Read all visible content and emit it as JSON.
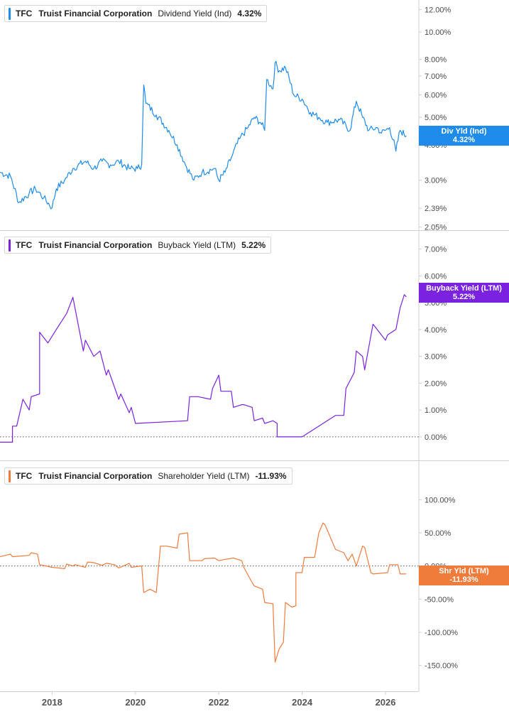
{
  "chart_data": [
    {
      "type": "line",
      "scale": "log",
      "ticker": "TFC",
      "company": "Truist Financial Corporation",
      "metric": "Dividend Yield (Ind)",
      "current_value": "4.32%",
      "tag_label": "Div Yld (Ind)",
      "color": "#1f8ceb",
      "ylim": [
        2.0,
        12.6
      ],
      "y_ticks": [
        {
          "v": 12,
          "label": "12.00%"
        },
        {
          "v": 10,
          "label": "10.00%"
        },
        {
          "v": 8,
          "label": "8.00%"
        },
        {
          "v": 7,
          "label": "7.00%"
        },
        {
          "v": 6,
          "label": "6.00%"
        },
        {
          "v": 5,
          "label": "5.00%"
        },
        {
          "v": 4,
          "label": "4.00%"
        },
        {
          "v": 3,
          "label": "3.00%"
        },
        {
          "v": 2.39,
          "label": "2.39%"
        },
        {
          "v": 2.05,
          "label": "2.05%"
        }
      ],
      "series": [
        {
          "x": [
            2016.75,
            2017.0,
            2017.2,
            2017.45,
            2017.6,
            2017.8,
            2018.0,
            2018.1,
            2018.3,
            2018.5,
            2018.8,
            2019.0,
            2019.2,
            2019.4,
            2019.6,
            2019.85,
            2020.05,
            2020.15,
            2020.2,
            2020.25,
            2020.5,
            2020.8,
            2021.0,
            2021.2,
            2021.4,
            2021.6,
            2021.9,
            2022.0,
            2022.15,
            2022.3,
            2022.5,
            2022.7,
            2022.85,
            2023.0,
            2023.1,
            2023.15,
            2023.3,
            2023.35,
            2023.45,
            2023.6,
            2023.8,
            2024.0,
            2024.2,
            2024.4,
            2024.6,
            2024.9,
            2025.15,
            2025.3,
            2025.45,
            2025.6,
            2025.8,
            2025.9,
            2026.1,
            2026.25,
            2026.35,
            2026.5
          ],
          "y": [
            3.2,
            3.1,
            2.5,
            2.7,
            2.8,
            2.6,
            2.4,
            2.8,
            3.0,
            3.3,
            3.5,
            3.3,
            3.5,
            3.4,
            3.5,
            3.3,
            3.3,
            3.4,
            6.5,
            5.6,
            5.1,
            4.5,
            4.0,
            3.4,
            3.0,
            3.2,
            3.3,
            3.0,
            3.2,
            3.6,
            4.2,
            4.6,
            5.0,
            4.8,
            4.5,
            6.8,
            6.3,
            7.8,
            7.3,
            7.5,
            6.0,
            5.8,
            5.2,
            5.0,
            4.8,
            4.9,
            4.5,
            5.7,
            5.0,
            4.5,
            4.6,
            4.4,
            4.6,
            3.8,
            4.5,
            4.3
          ]
        }
      ]
    },
    {
      "type": "line",
      "ticker": "TFC",
      "company": "Truist Financial Corporation",
      "metric": "Buyback Yield (LTM)",
      "current_value": "5.22%",
      "tag_label": "Buyback Yield (LTM)",
      "color": "#7b22e0",
      "ylim": [
        -0.4,
        7.2
      ],
      "y_ticks": [
        {
          "v": 7,
          "label": "7.00%"
        },
        {
          "v": 6,
          "label": "6.00%"
        },
        {
          "v": 5,
          "label": "5.00%"
        },
        {
          "v": 4,
          "label": "4.00%"
        },
        {
          "v": 3,
          "label": "3.00%"
        },
        {
          "v": 2,
          "label": "2.00%"
        },
        {
          "v": 1,
          "label": "1.00%"
        },
        {
          "v": 0,
          "label": "0.00%"
        }
      ],
      "series": [
        {
          "x": [
            2016.75,
            2017.05,
            2017.05,
            2017.15,
            2017.3,
            2017.45,
            2017.5,
            2017.7,
            2017.7,
            2017.9,
            2018.1,
            2018.35,
            2018.5,
            2018.75,
            2018.8,
            2019.0,
            2019.15,
            2019.3,
            2019.35,
            2019.6,
            2019.65,
            2019.85,
            2019.9,
            2020.0,
            2021.25,
            2021.3,
            2021.5,
            2021.8,
            2021.85,
            2022.0,
            2022.05,
            2022.3,
            2022.35,
            2022.55,
            2022.6,
            2022.8,
            2022.85,
            2023.05,
            2023.1,
            2023.3,
            2023.4,
            2023.4,
            2024.0,
            2024.8,
            2025.0,
            2025.05,
            2025.25,
            2025.3,
            2025.45,
            2025.5,
            2025.7,
            2025.8,
            2026.0,
            2026.05,
            2026.25,
            2026.35,
            2026.45,
            2026.5
          ],
          "y": [
            -0.2,
            -0.2,
            0.4,
            0.4,
            1.4,
            1.0,
            1.5,
            1.6,
            3.9,
            3.5,
            4.0,
            4.6,
            5.2,
            3.2,
            3.6,
            3.0,
            3.2,
            2.3,
            2.5,
            1.4,
            1.6,
            0.9,
            1.1,
            0.5,
            0.6,
            1.5,
            1.5,
            1.4,
            1.8,
            2.3,
            1.7,
            1.7,
            1.1,
            1.2,
            1.2,
            1.1,
            0.6,
            0.7,
            0.5,
            0.6,
            0.5,
            0.0,
            0.0,
            0.8,
            0.8,
            1.8,
            2.4,
            3.2,
            3.0,
            2.5,
            4.2,
            4.0,
            3.6,
            3.8,
            4.0,
            4.8,
            5.3,
            5.22
          ]
        }
      ]
    },
    {
      "type": "line",
      "ticker": "TFC",
      "company": "Truist Financial Corporation",
      "metric": "Shareholder Yield (LTM)",
      "current_value": "-11.93%",
      "tag_label": "Shr Yld (LTM)",
      "color": "#f07c3c",
      "ylim": [
        -175,
        125
      ],
      "y_ticks": [
        {
          "v": 100,
          "label": "100.00%"
        },
        {
          "v": 50,
          "label": "50.00%"
        },
        {
          "v": 0,
          "label": "0.00%"
        },
        {
          "v": -50,
          "label": "-50.00%"
        },
        {
          "v": -100,
          "label": "-100.00%"
        },
        {
          "v": -150,
          "label": "-150.00%"
        }
      ],
      "series": [
        {
          "x": [
            2016.75,
            2017.0,
            2017.05,
            2017.45,
            2017.5,
            2017.65,
            2017.7,
            2018.0,
            2018.3,
            2018.35,
            2018.5,
            2018.55,
            2018.8,
            2018.85,
            2019.0,
            2019.2,
            2019.3,
            2019.5,
            2019.6,
            2019.85,
            2019.9,
            2020.15,
            2020.2,
            2020.35,
            2020.5,
            2020.6,
            2020.75,
            2021.0,
            2021.05,
            2021.25,
            2021.3,
            2021.6,
            2021.65,
            2021.9,
            2022.0,
            2022.15,
            2022.35,
            2022.55,
            2022.6,
            2022.8,
            2022.85,
            2023.05,
            2023.1,
            2023.3,
            2023.35,
            2023.45,
            2023.55,
            2023.6,
            2023.75,
            2023.85,
            2023.85,
            2024.0,
            2024.05,
            2024.3,
            2024.4,
            2024.5,
            2024.55,
            2024.8,
            2025.0,
            2025.1,
            2025.2,
            2025.3,
            2025.45,
            2025.5,
            2025.65,
            2025.7,
            2026.05,
            2026.1,
            2026.3,
            2026.35,
            2026.5
          ],
          "y": [
            14,
            18,
            14,
            16,
            20,
            18,
            2,
            -2,
            -4,
            3,
            0,
            2,
            -2,
            6,
            5,
            1,
            4,
            2,
            -3,
            4,
            -2,
            0,
            -40,
            -35,
            -40,
            30,
            30,
            27,
            48,
            50,
            8,
            8,
            11,
            12,
            8,
            10,
            12,
            8,
            -2,
            -25,
            -30,
            -35,
            -55,
            -57,
            -145,
            -125,
            -115,
            -55,
            -62,
            -60,
            -10,
            -10,
            13,
            13,
            50,
            65,
            62,
            25,
            20,
            8,
            18,
            0,
            30,
            28,
            -10,
            -12,
            -10,
            2,
            2,
            -12,
            -11.93
          ]
        }
      ]
    }
  ],
  "x_axis": {
    "xlim": [
      2016.75,
      2026.8
    ],
    "ticks": [
      {
        "v": 2018,
        "label": "2018"
      },
      {
        "v": 2020,
        "label": "2020"
      },
      {
        "v": 2022,
        "label": "2022"
      },
      {
        "v": 2024,
        "label": "2024"
      },
      {
        "v": 2026,
        "label": "2026"
      }
    ]
  },
  "colors": {
    "divider": "#cfcfcf",
    "axis_text": "#4a4a4a",
    "zero_line": "#555555"
  }
}
